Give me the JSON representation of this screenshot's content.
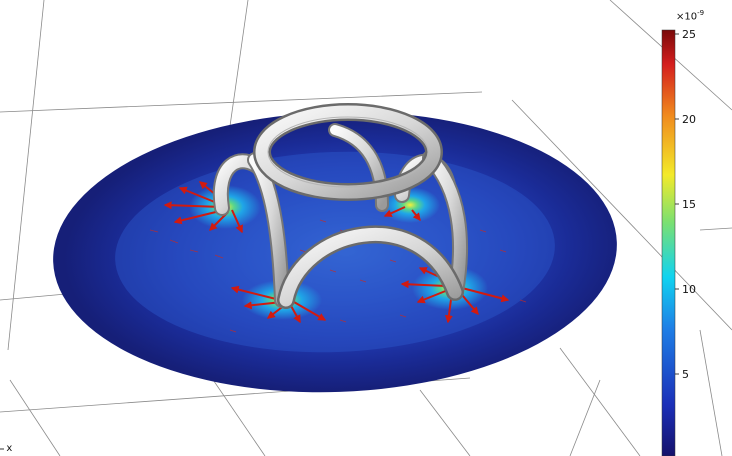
{
  "colorbar": {
    "multiplier_base": "×10",
    "multiplier_exponent": "-9",
    "ticks": [
      "25",
      "20",
      "15",
      "10",
      "5"
    ]
  },
  "axis": {
    "x_label": "x"
  }
}
